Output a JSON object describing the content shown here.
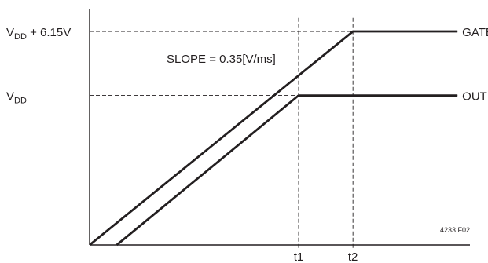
{
  "chart_data": {
    "type": "line",
    "x_ticks": [
      {
        "id": "t1",
        "label": "t1",
        "x": 1.0
      },
      {
        "id": "t2",
        "label": "t2",
        "x": 1.26
      }
    ],
    "y_levels": [
      {
        "id": "gate",
        "label_main": "V",
        "label_sub": "DD",
        "label_suffix": " + 6.15V",
        "y": 1.0
      },
      {
        "id": "vdd",
        "label_main": "V",
        "label_sub": "DD",
        "label_suffix": "",
        "y": 0.7
      }
    ],
    "series": [
      {
        "name": "GATE",
        "points": [
          [
            0,
            0
          ],
          [
            1.26,
            1.0
          ],
          [
            1.76,
            1.0
          ]
        ]
      },
      {
        "name": "OUT",
        "points": [
          [
            0.13,
            0
          ],
          [
            1.0,
            0.7
          ],
          [
            1.76,
            0.7
          ]
        ]
      }
    ],
    "annotation": "SLOPE = 0.35[V/ms]",
    "figure_id": "4233 F02",
    "xlim": [
      0,
      1.76
    ],
    "ylim": [
      0,
      1.1
    ]
  }
}
